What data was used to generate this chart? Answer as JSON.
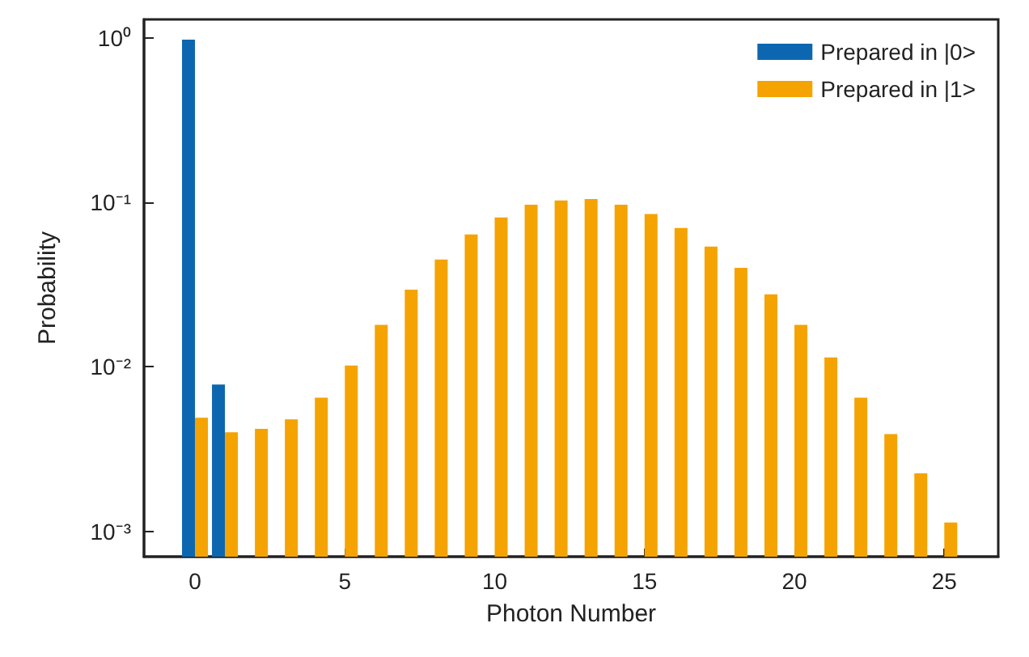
{
  "chart_data": {
    "type": "bar",
    "xlabel": "Photon Number",
    "ylabel": "Probability",
    "x": [
      0,
      1,
      2,
      3,
      4,
      5,
      6,
      7,
      8,
      9,
      10,
      11,
      12,
      13,
      14,
      15,
      16,
      17,
      18,
      19,
      20,
      21,
      22,
      23,
      24,
      25
    ],
    "series": [
      {
        "name": "Prepared in |0>",
        "color": "#0d67b0",
        "values": [
          0.98,
          0.0078,
          null,
          null,
          null,
          null,
          null,
          null,
          null,
          null,
          null,
          null,
          null,
          null,
          null,
          null,
          null,
          null,
          null,
          null,
          null,
          null,
          null,
          null,
          null,
          null
        ]
      },
      {
        "name": "Prepared in |1>",
        "color": "#f5a300",
        "values": [
          0.0049,
          0.004,
          0.0042,
          0.0048,
          0.0065,
          0.0102,
          0.018,
          0.0295,
          0.045,
          0.064,
          0.081,
          0.097,
          0.103,
          0.105,
          0.097,
          0.085,
          0.07,
          0.054,
          0.04,
          0.0276,
          0.018,
          0.0114,
          0.0065,
          0.0039,
          0.00225,
          0.00113
        ]
      }
    ],
    "log": "y",
    "xlim": [
      -1.7,
      26.8
    ],
    "xticks": [
      0,
      5,
      10,
      15,
      20,
      25
    ],
    "ylim": [
      0.0007,
      1.3
    ],
    "yticks": [
      {
        "value": 0.001,
        "label": "10⁻³"
      },
      {
        "value": 0.01,
        "label": "10⁻²"
      },
      {
        "value": 0.1,
        "label": "10⁻¹"
      },
      {
        "value": 1,
        "label": "10⁰"
      }
    ],
    "legend": "top right",
    "grid": false
  }
}
